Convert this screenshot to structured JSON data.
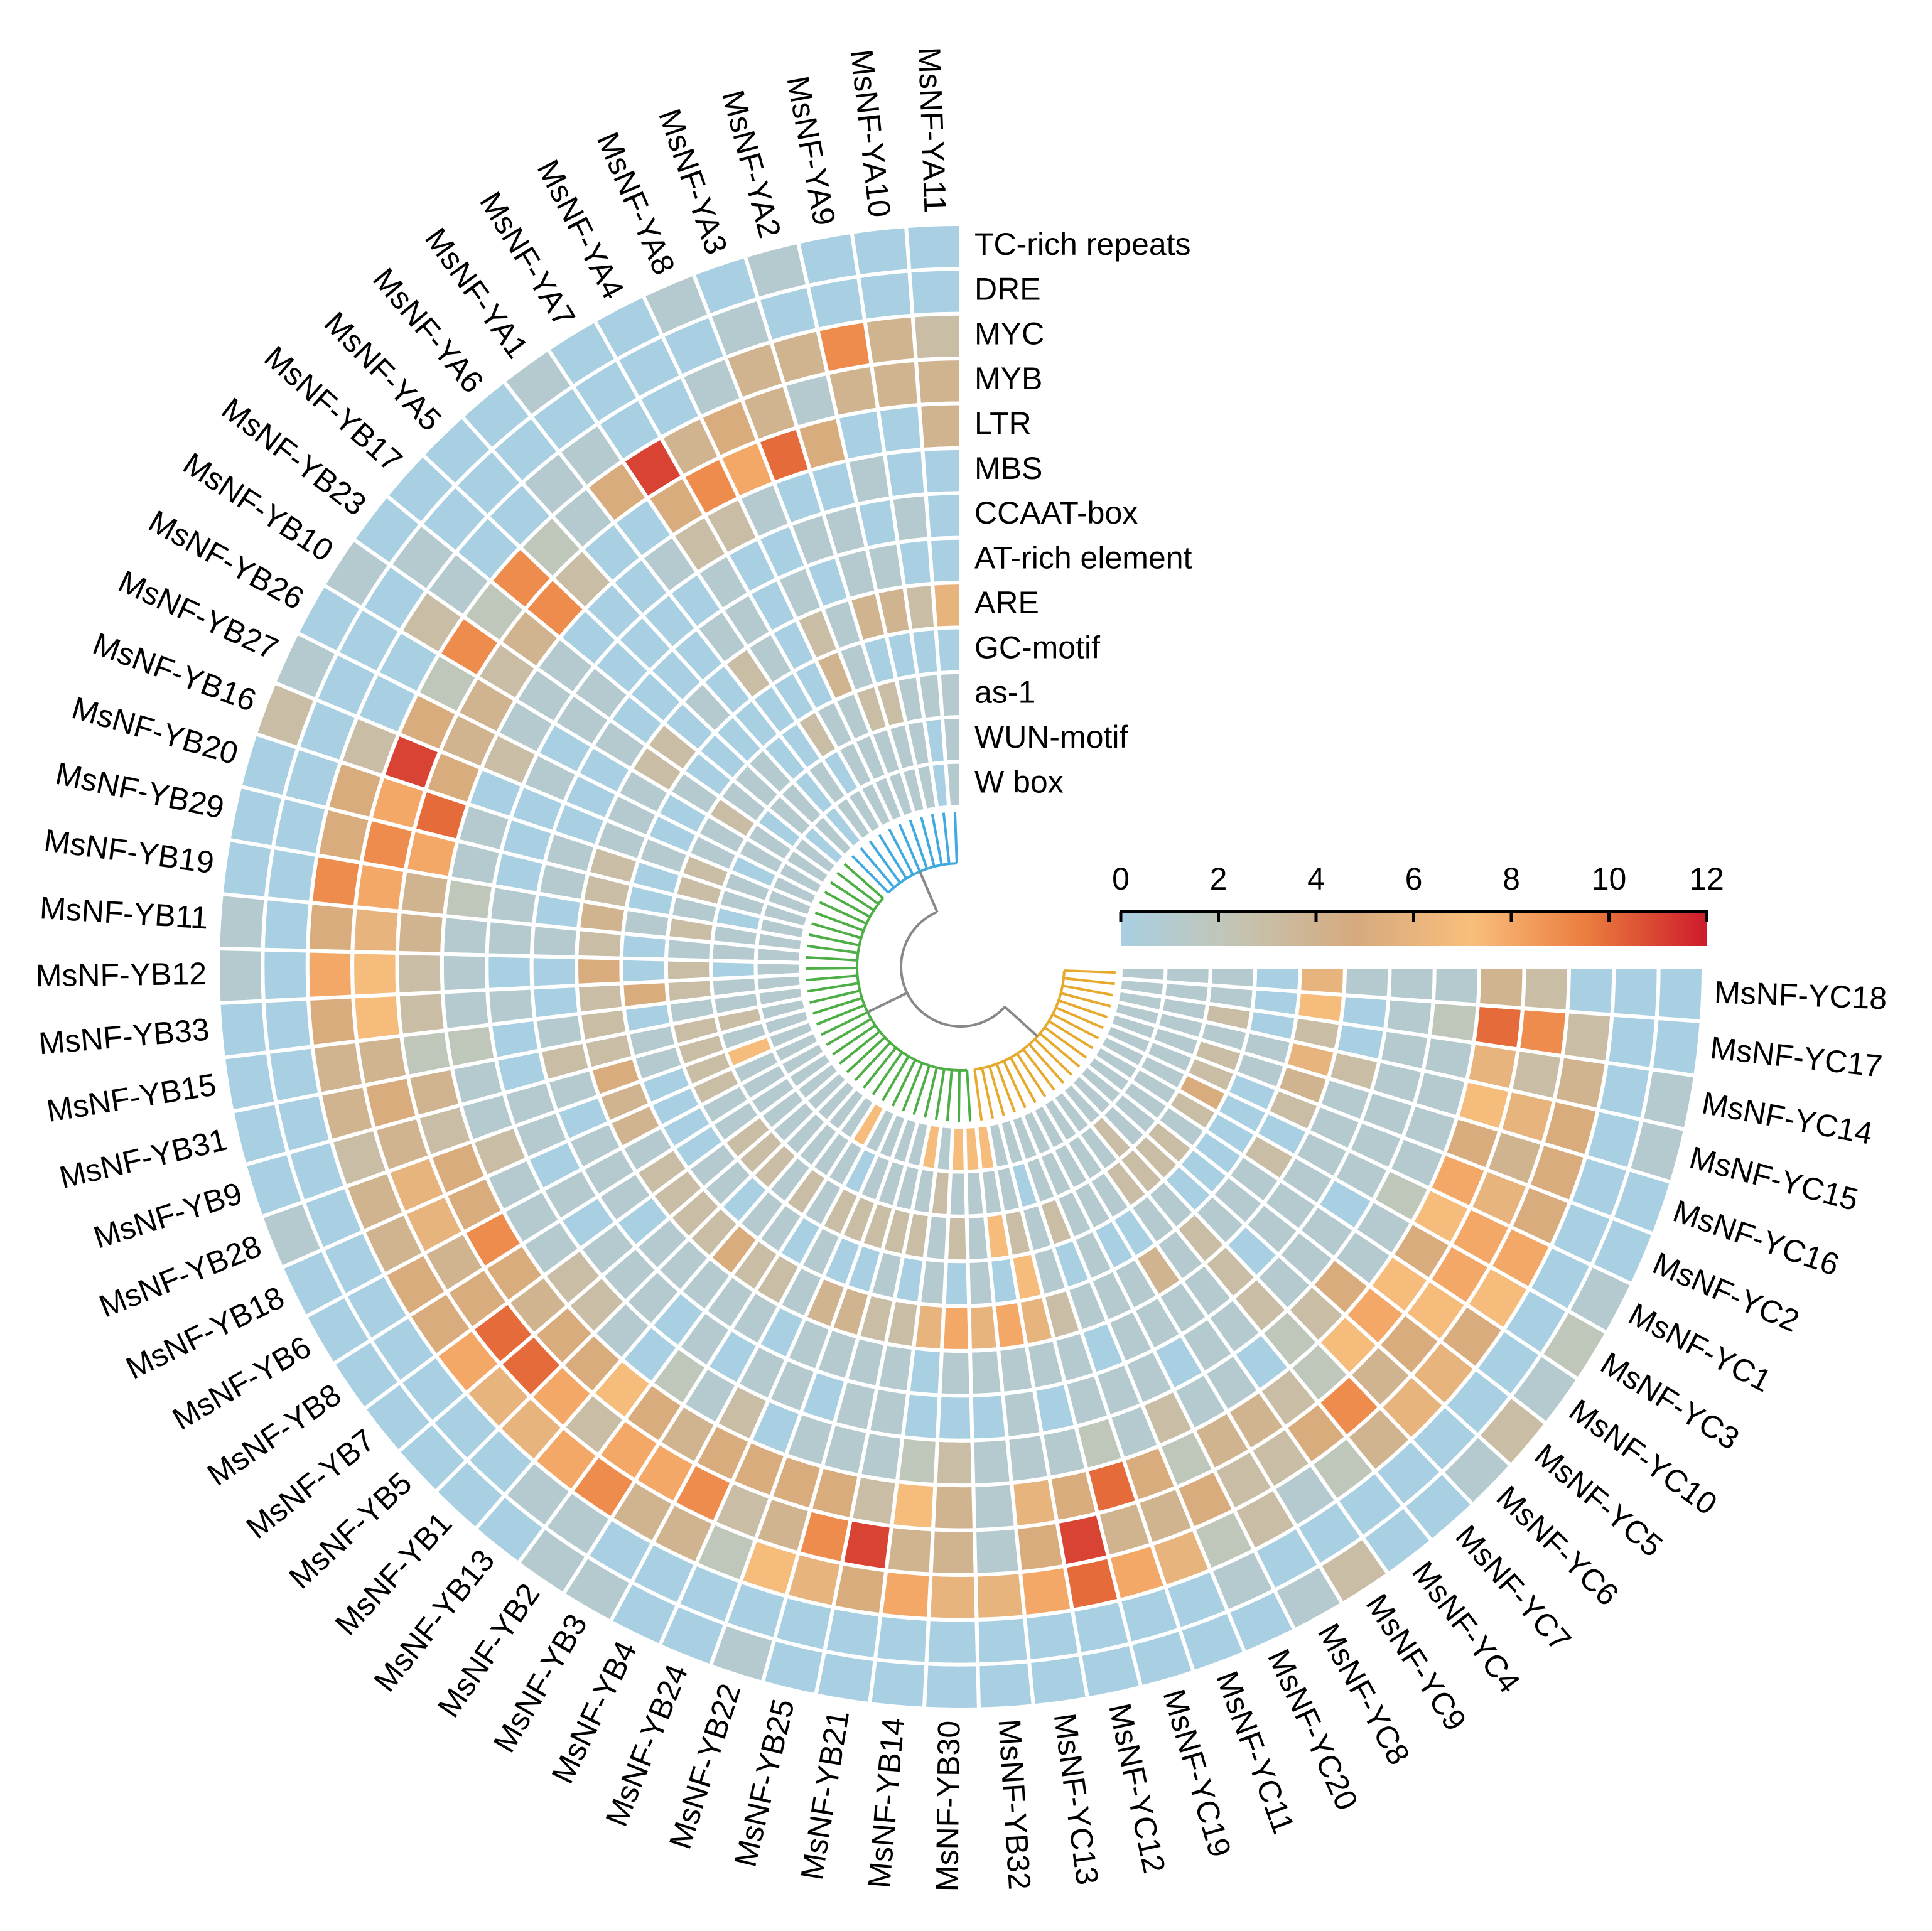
{
  "chart_data": {
    "type": "circular-heatmap",
    "genes": [
      "MsNF-YA11",
      "MsNF-YA10",
      "MsNF-YA9",
      "MsNF-YA2",
      "MsNF-YA3",
      "MsNF-YA8",
      "MsNF-YA4",
      "MsNF-YA7",
      "MsNF-YA1",
      "MsNF-YA6",
      "MsNF-YA5",
      "MsNF-YB17",
      "MsNF-YB23",
      "MsNF-YB10",
      "MsNF-YB26",
      "MsNF-YB27",
      "MsNF-YB16",
      "MsNF-YB20",
      "MsNF-YB29",
      "MsNF-YB19",
      "MsNF-YB11",
      "MsNF-YB12",
      "MsNF-YB33",
      "MsNF-YB15",
      "MsNF-YB31",
      "MsNF-YB9",
      "MsNF-YB28",
      "MsNF-YB18",
      "MsNF-YB6",
      "MsNF-YB8",
      "MsNF-YB7",
      "MsNF-YB5",
      "MsNF-YB1",
      "MsNF-YB13",
      "MsNF-YB2",
      "MsNF-YB3",
      "MsNF-YB4",
      "MsNF-YB24",
      "MsNF-YB22",
      "MsNF-YB25",
      "MsNF-YB21",
      "MsNF-YB14",
      "MsNF-YB30",
      "MsNF-YB32",
      "MsNF-YC13",
      "MsNF-YC12",
      "MsNF-YC19",
      "MsNF-YC11",
      "MsNF-YC20",
      "MsNF-YC8",
      "MsNF-YC9",
      "MsNF-YC4",
      "MsNF-YC7",
      "MsNF-YC6",
      "MsNF-YC5",
      "MsNF-YC10",
      "MsNF-YC3",
      "MsNF-YC1",
      "MsNF-YC2",
      "MsNF-YC16",
      "MsNF-YC15",
      "MsNF-YC14",
      "MsNF-YC17",
      "MsNF-YC18"
    ],
    "elements": [
      "TC-rich repeats",
      "DRE",
      "MYC",
      "MYB",
      "LTR",
      "MBS",
      "CCAAT-box",
      "AT-rich element",
      "ARE",
      "GC-motif",
      "as-1",
      "WUN-motif",
      "W box"
    ],
    "values": [
      [
        0,
        0,
        0,
        1,
        0,
        1,
        0,
        0,
        1,
        0,
        0,
        0,
        0,
        1,
        0,
        1,
        3,
        0,
        0,
        0,
        1,
        1,
        0,
        0,
        0,
        0,
        1,
        0,
        0,
        0,
        0,
        0,
        0,
        0,
        1,
        1,
        0,
        0,
        1,
        0,
        0,
        0,
        0,
        0,
        0,
        0,
        0,
        0,
        0,
        1,
        3,
        0,
        0,
        1,
        3,
        1,
        2,
        1,
        0,
        0,
        1,
        1,
        0,
        0
      ],
      [
        0,
        0,
        0,
        0,
        1,
        0,
        0,
        0,
        0,
        0,
        0,
        0,
        1,
        0,
        0,
        0,
        0,
        0,
        0,
        0,
        0,
        0,
        0,
        0,
        0,
        0,
        0,
        0,
        0,
        0,
        0,
        0,
        0,
        1,
        1,
        0,
        0,
        0,
        0,
        0,
        0,
        0,
        0,
        0,
        0,
        0,
        0,
        0,
        1,
        0,
        0,
        0,
        0,
        0,
        0,
        0,
        0,
        0,
        0,
        0,
        0,
        0,
        0,
        0
      ],
      [
        3,
        4,
        9,
        4,
        4,
        1,
        0,
        0,
        1,
        1,
        0,
        0,
        1,
        3,
        0,
        0,
        3,
        5,
        5,
        9,
        5,
        8,
        5,
        4,
        4,
        3,
        4,
        4,
        5,
        5,
        8,
        6,
        6,
        8,
        9,
        4,
        4,
        2,
        7,
        6,
        5,
        8,
        6,
        6,
        8,
        10,
        8,
        6,
        2,
        3,
        1,
        2,
        4,
        6,
        6,
        5,
        7,
        8,
        5,
        5,
        5,
        4,
        3,
        0
      ],
      [
        4,
        4,
        4,
        1,
        4,
        5,
        4,
        11,
        5,
        1,
        2,
        9,
        2,
        9,
        2,
        5,
        11,
        8,
        9,
        8,
        6,
        7,
        7,
        4,
        5,
        4,
        6,
        6,
        4,
        5,
        10,
        10,
        8,
        3,
        8,
        8,
        9,
        3,
        4,
        9,
        11,
        4,
        4,
        1,
        5,
        11,
        4,
        4,
        5,
        3,
        3,
        5,
        9,
        4,
        5,
        7,
        8,
        8,
        6,
        4,
        6,
        3,
        9,
        3
      ],
      [
        4,
        0,
        0,
        5,
        10,
        8,
        9,
        5,
        0,
        0,
        3,
        9,
        4,
        3,
        4,
        4,
        5,
        10,
        8,
        4,
        4,
        3,
        3,
        2,
        4,
        3,
        5,
        5,
        9,
        5,
        4,
        5,
        5,
        7,
        5,
        4,
        5,
        5,
        5,
        5,
        3,
        7,
        4,
        1,
        6,
        5,
        10,
        5,
        2,
        4,
        4,
        3,
        2,
        7,
        8,
        7,
        5,
        7,
        8,
        5,
        7,
        6,
        10,
        4
      ],
      [
        0,
        0,
        1,
        0,
        0,
        1,
        3,
        3,
        1,
        0,
        0,
        0,
        1,
        1,
        1,
        3,
        0,
        1,
        1,
        2,
        1,
        1,
        1,
        2,
        1,
        1,
        3,
        1,
        1,
        1,
        3,
        3,
        1,
        0,
        2,
        1,
        3,
        0,
        1,
        1,
        1,
        2,
        3,
        1,
        1,
        1,
        2,
        1,
        3,
        1,
        1,
        0,
        2,
        3,
        5,
        1,
        1,
        2,
        1,
        1,
        1,
        1,
        2,
        1
      ],
      [
        0,
        1,
        0,
        1,
        1,
        0,
        0,
        1,
        0,
        0,
        0,
        0,
        1,
        1,
        0,
        1,
        0,
        0,
        0,
        1,
        1,
        0,
        1,
        0,
        0,
        1,
        1,
        0,
        1,
        0,
        1,
        1,
        1,
        0,
        1,
        0,
        1,
        1,
        0,
        1,
        1,
        0,
        0,
        0,
        1,
        0,
        1,
        1,
        1,
        0,
        1,
        1,
        3,
        1,
        1,
        1,
        0,
        1,
        1,
        1,
        1,
        1,
        1,
        1
      ],
      [
        0,
        0,
        1,
        1,
        0,
        1,
        0,
        1,
        1,
        0,
        0,
        0,
        0,
        1,
        0,
        0,
        0,
        1,
        1,
        0,
        1,
        0,
        0,
        1,
        3,
        1,
        0,
        1,
        1,
        1,
        0,
        1,
        1,
        1,
        1,
        1,
        0,
        1,
        1,
        1,
        1,
        0,
        1,
        1,
        1,
        1,
        1,
        0,
        1,
        1,
        1,
        1,
        3,
        0,
        1,
        1,
        1,
        1,
        1,
        1,
        3,
        0,
        0,
        1
      ],
      [
        6,
        3,
        4,
        4,
        1,
        3,
        0,
        1,
        3,
        0,
        1,
        0,
        3,
        3,
        1,
        1,
        1,
        3,
        3,
        4,
        3,
        5,
        3,
        3,
        3,
        5,
        4,
        4,
        1,
        3,
        3,
        3,
        3,
        5,
        3,
        3,
        1,
        4,
        4,
        3,
        3,
        6,
        8,
        6,
        8,
        6,
        3,
        1,
        1,
        1,
        4,
        1,
        3,
        1,
        1,
        1,
        3,
        0,
        3,
        4,
        6,
        3,
        7,
        6
      ],
      [
        0,
        0,
        0,
        0,
        1,
        4,
        0,
        0,
        0,
        0,
        0,
        0,
        0,
        1,
        0,
        0,
        1,
        0,
        0,
        1,
        0,
        0,
        5,
        0,
        1,
        1,
        0,
        0,
        0,
        0,
        1,
        1,
        0,
        1,
        1,
        0,
        1,
        0,
        0,
        1,
        0,
        1,
        0,
        1,
        0,
        7,
        1,
        0,
        1,
        0,
        0,
        1,
        1,
        0,
        0,
        0,
        0,
        0,
        0,
        1,
        1,
        0,
        0,
        0
      ],
      [
        1,
        1,
        1,
        3,
        3,
        1,
        1,
        3,
        0,
        0,
        1,
        1,
        1,
        3,
        1,
        1,
        3,
        3,
        1,
        3,
        1,
        3,
        3,
        1,
        3,
        3,
        3,
        3,
        1,
        1,
        3,
        3,
        3,
        1,
        3,
        1,
        3,
        3,
        3,
        3,
        3,
        1,
        3,
        1,
        7,
        3,
        1,
        3,
        1,
        1,
        1,
        3,
        3,
        3,
        3,
        1,
        3,
        5,
        3,
        3,
        1,
        3,
        1,
        1
      ],
      [
        1,
        0,
        1,
        1,
        1,
        1,
        1,
        0,
        1,
        0,
        1,
        1,
        0,
        1,
        1,
        0,
        1,
        1,
        0,
        1,
        1,
        0,
        1,
        1,
        3,
        1,
        7,
        1,
        1,
        1,
        1,
        1,
        1,
        1,
        1,
        1,
        0,
        1,
        1,
        1,
        1,
        3,
        1,
        1,
        1,
        1,
        0,
        1,
        1,
        1,
        1,
        1,
        3,
        1,
        1,
        1,
        1,
        1,
        1,
        1,
        1,
        1,
        1,
        1
      ],
      [
        1,
        0,
        1,
        1,
        1,
        1,
        1,
        1,
        1,
        0,
        1,
        0,
        1,
        1,
        1,
        1,
        1,
        1,
        1,
        1,
        1,
        1,
        1,
        1,
        1,
        1,
        1,
        1,
        1,
        1,
        1,
        1,
        1,
        1,
        1,
        7,
        1,
        1,
        1,
        1,
        7,
        1,
        7,
        7,
        7,
        1,
        1,
        1,
        1,
        1,
        1,
        1,
        1,
        1,
        1,
        1,
        1,
        1,
        1,
        1,
        1,
        1,
        1,
        1
      ]
    ],
    "clim": [
      0,
      12
    ],
    "colorbar_ticks": [
      0,
      2,
      4,
      6,
      8,
      10,
      12
    ],
    "colormap": [
      "#a8cfe2",
      "#c4c4b2",
      "#d6aa7e",
      "#f9be7c",
      "#ea7b3d",
      "#cd1b2b"
    ]
  }
}
